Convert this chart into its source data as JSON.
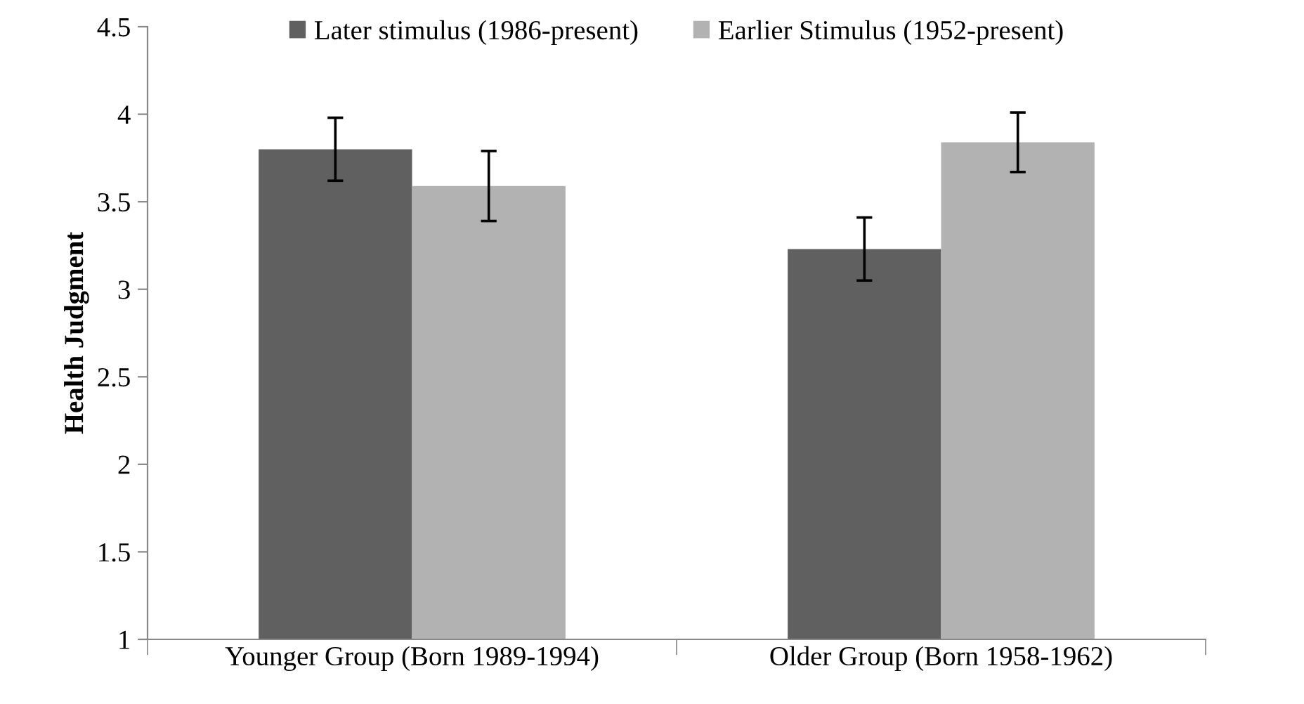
{
  "chart_data": {
    "type": "bar",
    "ylabel": "Health Judgment",
    "categories": [
      "Younger Group (Born 1989-1994)",
      "Older Group (Born 1958-1962)"
    ],
    "series": [
      {
        "name": "Later stimulus (1986-present)",
        "color": "#606060",
        "values": [
          3.8,
          3.23
        ],
        "errors": [
          0.18,
          0.18
        ]
      },
      {
        "name": "Earlier Stimulus (1952-present)",
        "color": "#b2b2b2",
        "values": [
          3.59,
          3.84
        ],
        "errors": [
          0.2,
          0.17
        ]
      }
    ],
    "ylim": [
      1,
      4.5
    ],
    "yticks": [
      1,
      1.5,
      2,
      2.5,
      3,
      3.5,
      4,
      4.5
    ],
    "grid": false,
    "legend": "top"
  }
}
